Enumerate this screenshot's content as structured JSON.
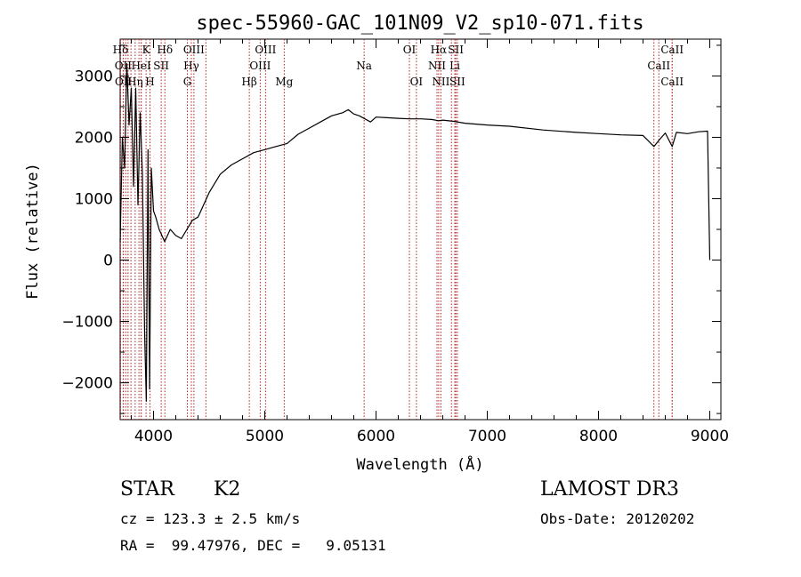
{
  "chart_data": {
    "type": "line",
    "title": "spec-55960-GAC_101N09_V2_sp10-071.fits",
    "xlabel": "Wavelength (Å)",
    "ylabel": "Flux (relative)",
    "xlim": [
      3700,
      9100
    ],
    "ylim": [
      -2600,
      3600
    ],
    "xticks": [
      4000,
      5000,
      6000,
      7000,
      8000,
      9000
    ],
    "yticks": [
      -2000,
      -1000,
      0,
      1000,
      2000,
      3000
    ],
    "grid": false,
    "series": [
      {
        "x": [
          3700,
          3720,
          3740,
          3760,
          3780,
          3800,
          3820,
          3840,
          3860,
          3880,
          3900,
          3920,
          3935,
          3950,
          3965,
          3980,
          4000,
          4020,
          4050,
          4100,
          4150,
          4200,
          4250,
          4300,
          4350,
          4400,
          4450,
          4500,
          4600,
          4700,
          4800,
          4900,
          5000,
          5100,
          5200,
          5300,
          5400,
          5500,
          5600,
          5700,
          5750,
          5800,
          5850,
          5900,
          5950,
          6000,
          6100,
          6200,
          6300,
          6400,
          6500,
          6563,
          6600,
          6700,
          6800,
          7000,
          7200,
          7500,
          7800,
          8000,
          8200,
          8400,
          8498,
          8542,
          8600,
          8662,
          8700,
          8800,
          8900,
          8980,
          9000
        ],
        "y": [
          300,
          2000,
          1500,
          3200,
          2200,
          2800,
          1200,
          2800,
          900,
          2400,
          1400,
          -1200,
          -2300,
          1800,
          -2100,
          1500,
          800,
          700,
          500,
          300,
          500,
          400,
          350,
          500,
          650,
          700,
          900,
          1100,
          1400,
          1550,
          1650,
          1750,
          1800,
          1850,
          1900,
          2050,
          2150,
          2250,
          2350,
          2400,
          2450,
          2380,
          2350,
          2300,
          2250,
          2330,
          2320,
          2310,
          2300,
          2300,
          2290,
          2270,
          2280,
          2260,
          2230,
          2200,
          2180,
          2120,
          2080,
          2060,
          2040,
          2030,
          1850,
          1950,
          2070,
          1850,
          2080,
          2060,
          2090,
          2100,
          0
        ]
      }
    ],
    "line_marks": [
      {
        "label": "Hδ",
        "x": 3704,
        "row": 1
      },
      {
        "label": "K",
        "x": 3933,
        "row": 1
      },
      {
        "label": "Hδ",
        "x": 4102,
        "row": 1
      },
      {
        "label": "OIII",
        "x": 4363,
        "row": 1
      },
      {
        "label": "OIII",
        "x": 5007,
        "row": 1
      },
      {
        "label": "OI",
        "x": 6300,
        "row": 1
      },
      {
        "label": "Hα",
        "x": 6563,
        "row": 1
      },
      {
        "label": "SII",
        "x": 6717,
        "row": 1
      },
      {
        "label": "CaII",
        "x": 8662,
        "row": 1
      },
      {
        "label": "OII",
        "x": 3727,
        "row": 2
      },
      {
        "label": "HeI",
        "x": 3889,
        "row": 2
      },
      {
        "label": "SII",
        "x": 4069,
        "row": 2
      },
      {
        "label": "Hγ",
        "x": 4340,
        "row": 2
      },
      {
        "label": "OIII",
        "x": 4959,
        "row": 2
      },
      {
        "label": "Na",
        "x": 5893,
        "row": 2
      },
      {
        "label": "NII",
        "x": 6548,
        "row": 2
      },
      {
        "label": "Li",
        "x": 6708,
        "row": 2
      },
      {
        "label": "CaII",
        "x": 8542,
        "row": 2
      },
      {
        "label": "OII",
        "x": 3729,
        "row": 3
      },
      {
        "label": "Hη",
        "x": 3835,
        "row": 3
      },
      {
        "label": "H",
        "x": 3968,
        "row": 3
      },
      {
        "label": "G",
        "x": 4304,
        "row": 3
      },
      {
        "label": "Hβ",
        "x": 4861,
        "row": 3
      },
      {
        "label": "Mg",
        "x": 5175,
        "row": 3
      },
      {
        "label": "OI",
        "x": 6363,
        "row": 3
      },
      {
        "label": "NII",
        "x": 6583,
        "row": 3
      },
      {
        "label": "SII",
        "x": 6731,
        "row": 3
      },
      {
        "label": "CaII",
        "x": 8662,
        "row": 3
      }
    ],
    "extra_marker_lines": [
      3750,
      3771,
      3797,
      3869,
      3889,
      4471,
      6678,
      8498
    ]
  },
  "info": {
    "class_label": "STAR",
    "subclass": "K2",
    "survey": "LAMOST DR3",
    "cz": "cz = 123.3 ± 2.5 km/s",
    "obs_date": "Obs-Date: 20120202",
    "coords": "RA =  99.47976, DEC =   9.05131"
  },
  "colors": {
    "marker_line": "#b22222",
    "spectrum": "#000000"
  }
}
